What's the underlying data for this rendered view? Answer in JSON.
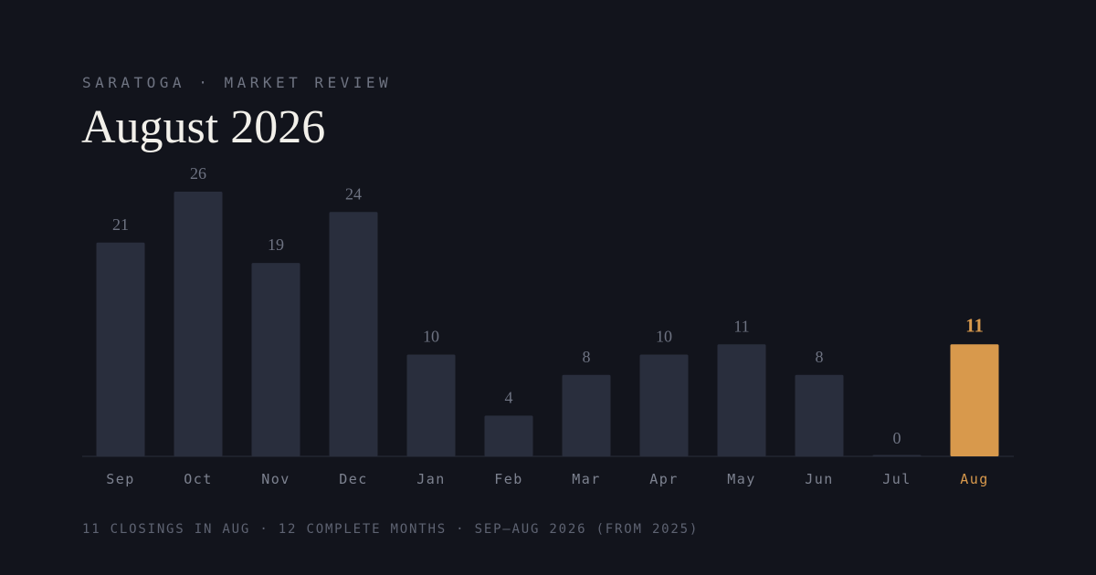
{
  "chart_data": {
    "type": "bar",
    "kicker": "SARATOGA · MARKET REVIEW",
    "title": "August 2026",
    "note": "11 CLOSINGS IN AUG · 12 COMPLETE MONTHS · SEP–AUG 2026 (FROM 2025)",
    "categories": [
      "Sep",
      "Oct",
      "Nov",
      "Dec",
      "Jan",
      "Feb",
      "Mar",
      "Apr",
      "May",
      "Jun",
      "Jul",
      "Aug"
    ],
    "values": [
      21,
      26,
      19,
      24,
      10,
      4,
      8,
      10,
      11,
      8,
      0,
      11
    ],
    "colors": [
      "#292e3d",
      "#292e3d",
      "#292e3d",
      "#292e3d",
      "#292e3d",
      "#292e3d",
      "#292e3d",
      "#292e3d",
      "#292e3d",
      "#292e3d",
      "#292e3d",
      "#d8994c"
    ]
  }
}
